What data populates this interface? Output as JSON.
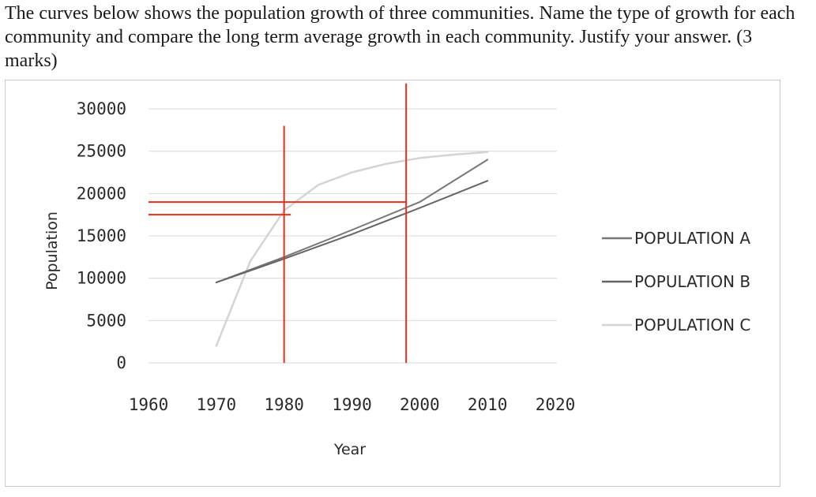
{
  "question": {
    "text": "The curves below shows the population growth of three communities. Name the type of growth for each community and compare the long term average growth in each community. Justify your answer. (3 marks)"
  },
  "chart_data": {
    "type": "line",
    "title": "",
    "xlabel": "Year",
    "ylabel": "Population",
    "xlim": [
      1960,
      2020
    ],
    "ylim": [
      0,
      30000
    ],
    "x_ticks": [
      1960,
      1970,
      1980,
      1990,
      2000,
      2010,
      2020
    ],
    "y_ticks": [
      0,
      5000,
      10000,
      15000,
      20000,
      25000,
      30000
    ],
    "grid": true,
    "legend_position": "right",
    "series": [
      {
        "name": "POPULATION A",
        "color": "#777777",
        "x": [
          1970,
          1980,
          1990,
          2000,
          2010
        ],
        "y": [
          9500,
          12500,
          15700,
          19000,
          24000
        ]
      },
      {
        "name": "POPULATION B",
        "color": "#666666",
        "x": [
          1970,
          1980,
          1990,
          2000,
          2010
        ],
        "y": [
          9500,
          12300,
          15200,
          18300,
          21500
        ]
      },
      {
        "name": "POPULATION C",
        "color": "#d4d4d4",
        "x": [
          1970,
          1975,
          1980,
          1985,
          1990,
          1995,
          2000,
          2005,
          2010
        ],
        "y": [
          2000,
          12000,
          18000,
          21000,
          22500,
          23500,
          24200,
          24600,
          24900
        ]
      }
    ],
    "annotations": {
      "color": "#e8301c",
      "vertical_lines": [
        {
          "x": 1980,
          "y_from": 0,
          "y_to": 28000
        },
        {
          "x": 1998,
          "y_from": 0,
          "y_to": 33000
        }
      ],
      "horizontal_lines": [
        {
          "y": 19000,
          "x_from": 1960,
          "x_to": 1998
        },
        {
          "y": 17500,
          "x_from": 1960,
          "x_to": 1981
        }
      ]
    }
  }
}
